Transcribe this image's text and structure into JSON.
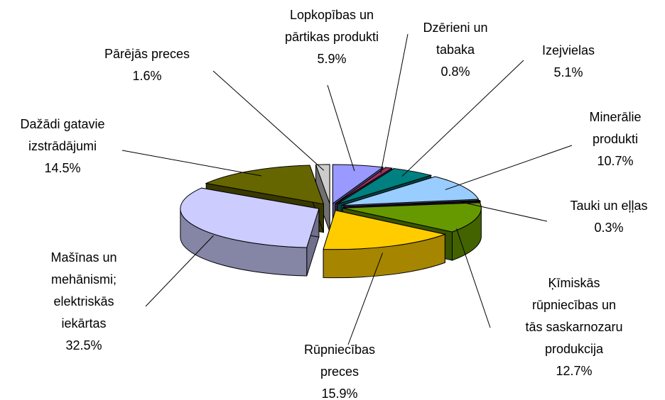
{
  "chart_data": {
    "type": "pie",
    "categories": [
      [
        "Lopkopības un",
        "pārtikas produkti"
      ],
      [
        "Dzērieni un",
        "tabaka"
      ],
      [
        "Izejvielas"
      ],
      [
        "Minerālie",
        "produkti"
      ],
      [
        "Tauki un eļļas"
      ],
      [
        "Ķīmiskās",
        "rūpniecības un",
        "tās saskarnozaru",
        "produkcija"
      ],
      [
        "Rūpniecības",
        "preces"
      ],
      [
        "Mašīnas un",
        "mehānismi;",
        "elektriskās",
        "iekārtas"
      ],
      [
        "Dažādi gatavie",
        "izstrādājumi"
      ],
      [
        "Pārējās preces"
      ]
    ],
    "values": [
      5.9,
      0.8,
      5.1,
      10.7,
      0.3,
      12.7,
      15.9,
      32.5,
      14.5,
      1.6
    ],
    "value_labels": [
      "5.9%",
      "0.8%",
      "5.1%",
      "10.7%",
      "0.3%",
      "12.7%",
      "15.9%",
      "32.5%",
      "14.5%",
      "1.6%"
    ],
    "colors": [
      "#9999ff",
      "#993366",
      "#008080",
      "#99ccff",
      "#660066",
      "#669900",
      "#ffcc00",
      "#ccccff",
      "#666600",
      "#cccccc"
    ]
  }
}
